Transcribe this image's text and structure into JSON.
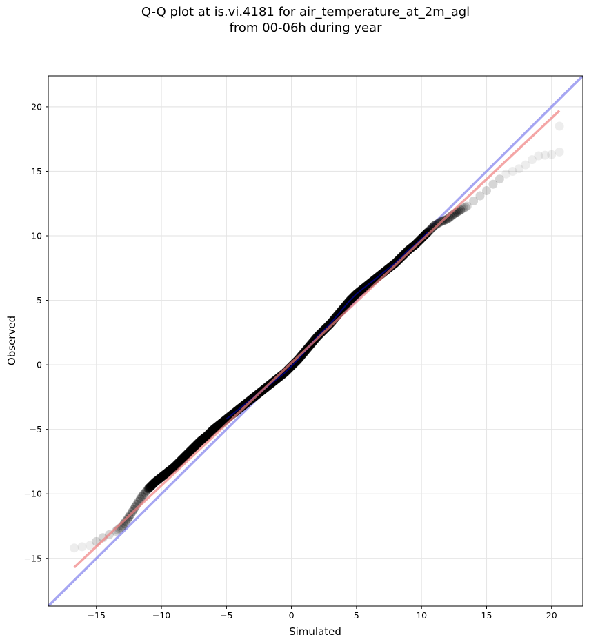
{
  "chart_data": {
    "type": "scatter",
    "title_line1": "Q-Q plot at is.vi.4181 for air_temperature_at_2m_agl",
    "title_line2": "from 00-06h during year",
    "xlabel": "Simulated",
    "ylabel": "Observed",
    "xlim": [
      -18.7,
      22.4
    ],
    "ylim": [
      -18.7,
      22.4
    ],
    "xticks": [
      -15,
      -10,
      -5,
      0,
      5,
      10,
      15,
      20
    ],
    "yticks": [
      -15,
      -10,
      -5,
      0,
      5,
      10,
      15,
      20
    ],
    "grid": true,
    "quantile_curve": [
      [
        -16.7,
        -14.2
      ],
      [
        -15.5,
        -14.0
      ],
      [
        -14.5,
        -13.4
      ],
      [
        -13.5,
        -12.9
      ],
      [
        -13.0,
        -12.5
      ],
      [
        -12.5,
        -11.8
      ],
      [
        -12.0,
        -11.0
      ],
      [
        -11.5,
        -10.2
      ],
      [
        -11.0,
        -9.6
      ],
      [
        -10.5,
        -9.1
      ],
      [
        -10.0,
        -8.7
      ],
      [
        -9.5,
        -8.3
      ],
      [
        -9.0,
        -7.9
      ],
      [
        -8.5,
        -7.4
      ],
      [
        -8.0,
        -6.9
      ],
      [
        -7.5,
        -6.4
      ],
      [
        -7.0,
        -5.9
      ],
      [
        -6.5,
        -5.5
      ],
      [
        -6.0,
        -5.0
      ],
      [
        -5.5,
        -4.6
      ],
      [
        -5.0,
        -4.2
      ],
      [
        -4.5,
        -3.8
      ],
      [
        -4.0,
        -3.4
      ],
      [
        -3.5,
        -3.0
      ],
      [
        -3.0,
        -2.6
      ],
      [
        -2.5,
        -2.2
      ],
      [
        -2.0,
        -1.8
      ],
      [
        -1.5,
        -1.4
      ],
      [
        -1.0,
        -1.0
      ],
      [
        -0.5,
        -0.6
      ],
      [
        0.0,
        -0.1
      ],
      [
        0.5,
        0.4
      ],
      [
        1.0,
        1.0
      ],
      [
        1.5,
        1.6
      ],
      [
        2.0,
        2.2
      ],
      [
        2.5,
        2.7
      ],
      [
        3.0,
        3.2
      ],
      [
        3.5,
        3.8
      ],
      [
        4.0,
        4.4
      ],
      [
        4.5,
        5.0
      ],
      [
        5.0,
        5.5
      ],
      [
        5.5,
        5.9
      ],
      [
        6.0,
        6.3
      ],
      [
        6.5,
        6.7
      ],
      [
        7.0,
        7.1
      ],
      [
        7.5,
        7.5
      ],
      [
        8.0,
        7.9
      ],
      [
        8.5,
        8.4
      ],
      [
        9.0,
        8.9
      ],
      [
        9.5,
        9.3
      ],
      [
        10.0,
        9.8
      ],
      [
        10.5,
        10.3
      ],
      [
        11.0,
        10.8
      ],
      [
        11.5,
        11.1
      ],
      [
        12.0,
        11.3
      ],
      [
        12.5,
        11.7
      ],
      [
        13.0,
        12.0
      ],
      [
        13.5,
        12.3
      ],
      [
        14.0,
        12.7
      ],
      [
        14.5,
        13.1
      ],
      [
        15.0,
        13.5
      ],
      [
        15.5,
        14.0
      ],
      [
        16.0,
        14.4
      ],
      [
        16.5,
        14.8
      ],
      [
        17.0,
        15.0
      ],
      [
        17.5,
        15.2
      ],
      [
        18.0,
        15.5
      ],
      [
        18.5,
        15.9
      ],
      [
        19.0,
        16.2
      ],
      [
        20.0,
        16.3
      ],
      [
        20.6,
        16.5
      ],
      [
        20.6,
        18.5
      ]
    ],
    "fit_line": {
      "x": [
        -16.7,
        20.6
      ],
      "y": [
        -15.7,
        19.7
      ],
      "color": "#f08080"
    },
    "identity_line": {
      "x": [
        -18.7,
        22.4
      ],
      "y": [
        -18.7,
        22.4
      ],
      "color": "#8888ee"
    },
    "marker_color": "#000000",
    "core_line_color": "#0000cc"
  }
}
